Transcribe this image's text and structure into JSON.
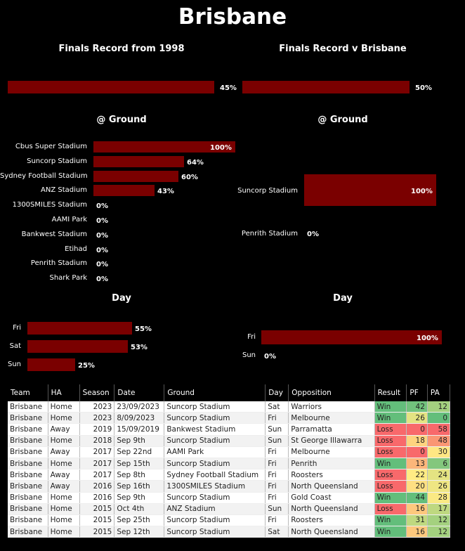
{
  "title": "Brisbane",
  "colors": {
    "bar": "#7a0000",
    "win": "#63be7b",
    "loss": "#f8696b"
  },
  "left": {
    "record_title": "Finals Record from 1998",
    "record_pct": 0.45,
    "record_label": "45%",
    "ground_title": "@ Ground",
    "grounds": [
      {
        "name": "Cbus Super Stadium",
        "pct": 1.0,
        "label": "100%"
      },
      {
        "name": "Suncorp Stadium",
        "pct": 0.64,
        "label": "64%"
      },
      {
        "name": "Sydney Football Stadium",
        "pct": 0.6,
        "label": "60%"
      },
      {
        "name": "ANZ Stadium",
        "pct": 0.43,
        "label": "43%"
      },
      {
        "name": "1300SMILES Stadium",
        "pct": 0,
        "label": "0%"
      },
      {
        "name": "AAMI Park",
        "pct": 0,
        "label": "0%"
      },
      {
        "name": "Bankwest Stadium",
        "pct": 0,
        "label": "0%"
      },
      {
        "name": "Etihad",
        "pct": 0,
        "label": "0%"
      },
      {
        "name": "Penrith Stadium",
        "pct": 0,
        "label": "0%"
      },
      {
        "name": "Shark Park",
        "pct": 0,
        "label": "0%"
      }
    ],
    "day_title": "Day",
    "days": [
      {
        "name": "Fri",
        "pct": 0.55,
        "label": "55%"
      },
      {
        "name": "Sat",
        "pct": 0.53,
        "label": "53%"
      },
      {
        "name": "Sun",
        "pct": 0.25,
        "label": "25%"
      }
    ]
  },
  "right": {
    "record_title": "Finals Record v Brisbane",
    "record_pct": 0.5,
    "record_label": "50%",
    "ground_title": "@ Ground",
    "grounds": [
      {
        "name": "Suncorp Stadium",
        "pct": 1.0,
        "label": "100%"
      },
      {
        "name": "Penrith Stadium",
        "pct": 0,
        "label": "0%"
      }
    ],
    "day_title": "Day",
    "days": [
      {
        "name": "Fri",
        "pct": 1.0,
        "label": "100%"
      },
      {
        "name": "Sun",
        "pct": 0,
        "label": "0%"
      }
    ]
  },
  "table": {
    "columns": [
      "Team",
      "HA",
      "Season",
      "Date",
      "Ground",
      "Day",
      "Opposition",
      "Result",
      "PF",
      "PA"
    ],
    "rows": [
      [
        "Brisbane",
        "Home",
        "2023",
        "23/09/2023",
        "Suncorp Stadium",
        "Sat",
        "Warriors",
        "Win",
        "42",
        "12"
      ],
      [
        "Brisbane",
        "Home",
        "2023",
        "8/09/2023",
        "Suncorp Stadium",
        "Fri",
        "Melbourne",
        "Win",
        "26",
        "0"
      ],
      [
        "Brisbane",
        "Away",
        "2019",
        "15/09/2019",
        "Bankwest Stadium",
        "Sun",
        "Parramatta",
        "Loss",
        "0",
        "58"
      ],
      [
        "Brisbane",
        "Home",
        "2018",
        "Sep 9th",
        "Suncorp Stadium",
        "Sun",
        "St George Illawarra",
        "Loss",
        "18",
        "48"
      ],
      [
        "Brisbane",
        "Away",
        "2017",
        "Sep 22nd",
        "AAMI Park",
        "Fri",
        "Melbourne",
        "Loss",
        "0",
        "30"
      ],
      [
        "Brisbane",
        "Home",
        "2017",
        "Sep 15th",
        "Suncorp Stadium",
        "Fri",
        "Penrith",
        "Win",
        "13",
        "6"
      ],
      [
        "Brisbane",
        "Away",
        "2017",
        "Sep 8th",
        "Sydney Football Stadium",
        "Fri",
        "Roosters",
        "Loss",
        "22",
        "24"
      ],
      [
        "Brisbane",
        "Away",
        "2016",
        "Sep 16th",
        "1300SMILES Stadium",
        "Fri",
        "North Queensland",
        "Loss",
        "20",
        "26"
      ],
      [
        "Brisbane",
        "Home",
        "2016",
        "Sep 9th",
        "Suncorp Stadium",
        "Fri",
        "Gold Coast",
        "Win",
        "44",
        "28"
      ],
      [
        "Brisbane",
        "Home",
        "2015",
        "Oct 4th",
        "ANZ Stadium",
        "Sun",
        "North Queensland",
        "Loss",
        "16",
        "17"
      ],
      [
        "Brisbane",
        "Home",
        "2015",
        "Sep 25th",
        "Suncorp Stadium",
        "Fri",
        "Roosters",
        "Win",
        "31",
        "12"
      ],
      [
        "Brisbane",
        "Home",
        "2015",
        "Sep 12th",
        "Suncorp Stadium",
        "Sat",
        "North Queensland",
        "Win",
        "16",
        "12"
      ]
    ]
  }
}
